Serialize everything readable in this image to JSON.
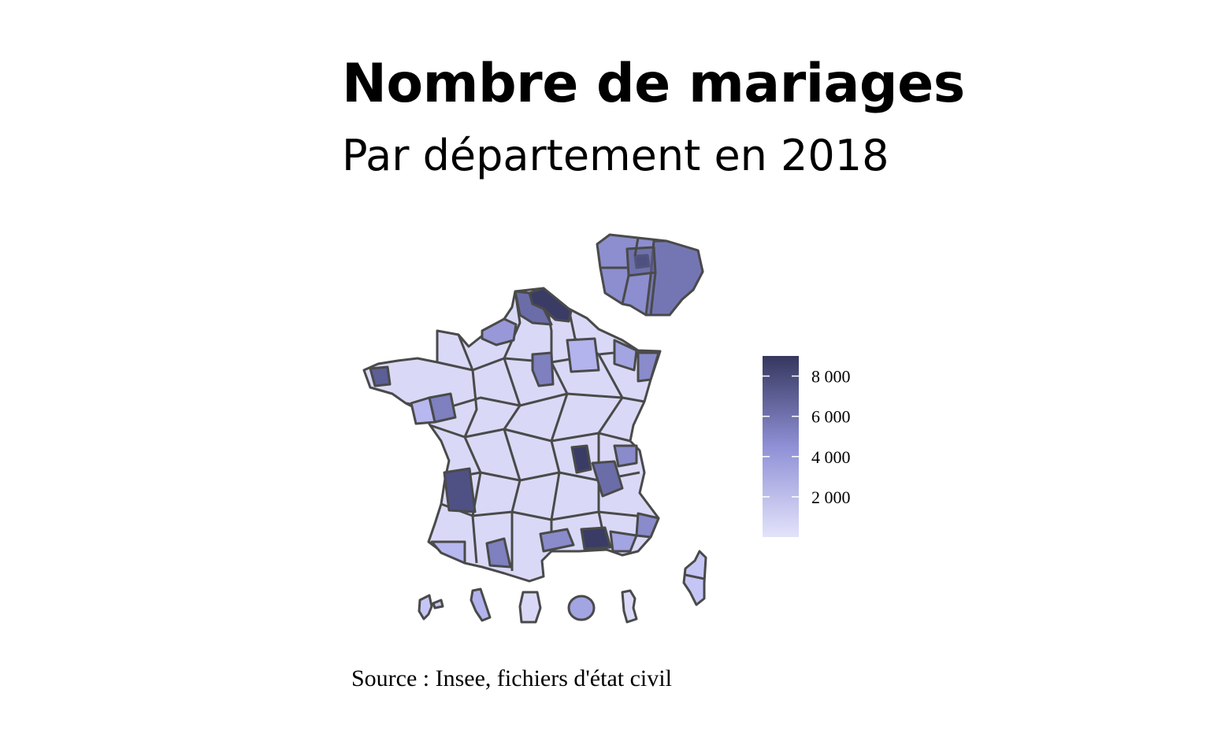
{
  "title": "Nombre de mariages",
  "subtitle": "Par département en 2018",
  "caption": "Source : Insee, fichiers d'état civil",
  "colors": {
    "scale_low": "#e3e3fb",
    "scale_mid": "#8f90d6",
    "scale_high": "#35375e",
    "border": "#4a4a4a",
    "background": "#ffffff"
  },
  "legend": {
    "min": 0,
    "max": 9000,
    "ticks": [
      {
        "value": 2000,
        "label": "2 000"
      },
      {
        "value": 4000,
        "label": "4 000"
      },
      {
        "value": 6000,
        "label": "6 000"
      },
      {
        "value": 8000,
        "label": "8 000"
      }
    ]
  }
}
